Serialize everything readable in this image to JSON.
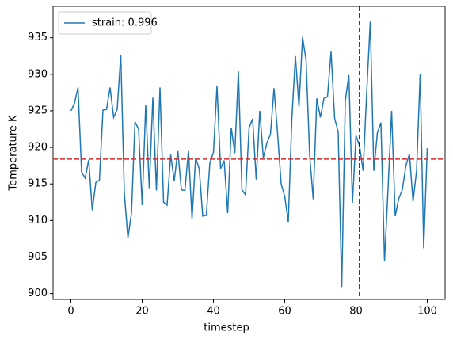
{
  "chart_data": {
    "type": "line",
    "xlabel": "timestep",
    "ylabel": "Temperature K",
    "x": [
      0,
      1,
      2,
      3,
      4,
      5,
      6,
      7,
      8,
      9,
      10,
      11,
      12,
      13,
      14,
      15,
      16,
      17,
      18,
      19,
      20,
      21,
      22,
      23,
      24,
      25,
      26,
      27,
      28,
      29,
      30,
      31,
      32,
      33,
      34,
      35,
      36,
      37,
      38,
      39,
      40,
      41,
      42,
      43,
      44,
      45,
      46,
      47,
      48,
      49,
      50,
      51,
      52,
      53,
      54,
      55,
      56,
      57,
      58,
      59,
      60,
      61,
      62,
      63,
      64,
      65,
      66,
      67,
      68,
      69,
      70,
      71,
      72,
      73,
      74,
      75,
      76,
      77,
      78,
      79,
      80,
      81,
      82,
      83,
      84,
      85,
      86,
      87,
      88,
      89,
      90,
      91,
      92,
      93,
      94,
      95,
      96,
      97,
      98,
      99,
      100
    ],
    "series": [
      {
        "name": "strain: 0.996",
        "color": "#1f77b4",
        "values": [
          925,
          926,
          928.2,
          916.6,
          915.8,
          918.3,
          911.4,
          915.2,
          915.5,
          925.1,
          925.2,
          928.2,
          924.1,
          925.2,
          932.7,
          913.7,
          907.6,
          911,
          923.5,
          922.5,
          912.1,
          925.8,
          914.4,
          926.8,
          914.1,
          928.2,
          912.5,
          912.1,
          919,
          915.4,
          919.6,
          914.2,
          914.1,
          919.6,
          910.2,
          918.6,
          917.1,
          910.6,
          910.7,
          917.9,
          919.3,
          928.4,
          917.1,
          918.2,
          911,
          922.7,
          919.2,
          930.4,
          914.2,
          913.5,
          922.7,
          923.9,
          915.6,
          925,
          918.6,
          920.6,
          921.8,
          928.1,
          921.9,
          915,
          913.3,
          909.8,
          923.9,
          932.5,
          925.6,
          935.1,
          931.9,
          918.9,
          912.9,
          926.7,
          924.1,
          926.7,
          926.9,
          933.1,
          924,
          922.1,
          900.9,
          926.4,
          929.9,
          912.4,
          921.6,
          920.2,
          916.8,
          927.5,
          937.2,
          916.8,
          922,
          923.4,
          904.4,
          914.4,
          925,
          910.6,
          913,
          914.2,
          917.5,
          919.1,
          912.6,
          916.8,
          930,
          906.2,
          919.9
        ]
      }
    ],
    "hline": {
      "value": 918.4,
      "color": "#d62728"
    },
    "vline": {
      "value": 81,
      "color": "#000000"
    },
    "xlim": [
      -5,
      105
    ],
    "ylim": [
      899.2,
      939.3
    ],
    "xticks": [
      0,
      20,
      40,
      60,
      80,
      100
    ],
    "yticks": [
      900,
      905,
      910,
      915,
      920,
      925,
      930,
      935
    ],
    "grid": false,
    "legend": "upper left"
  }
}
